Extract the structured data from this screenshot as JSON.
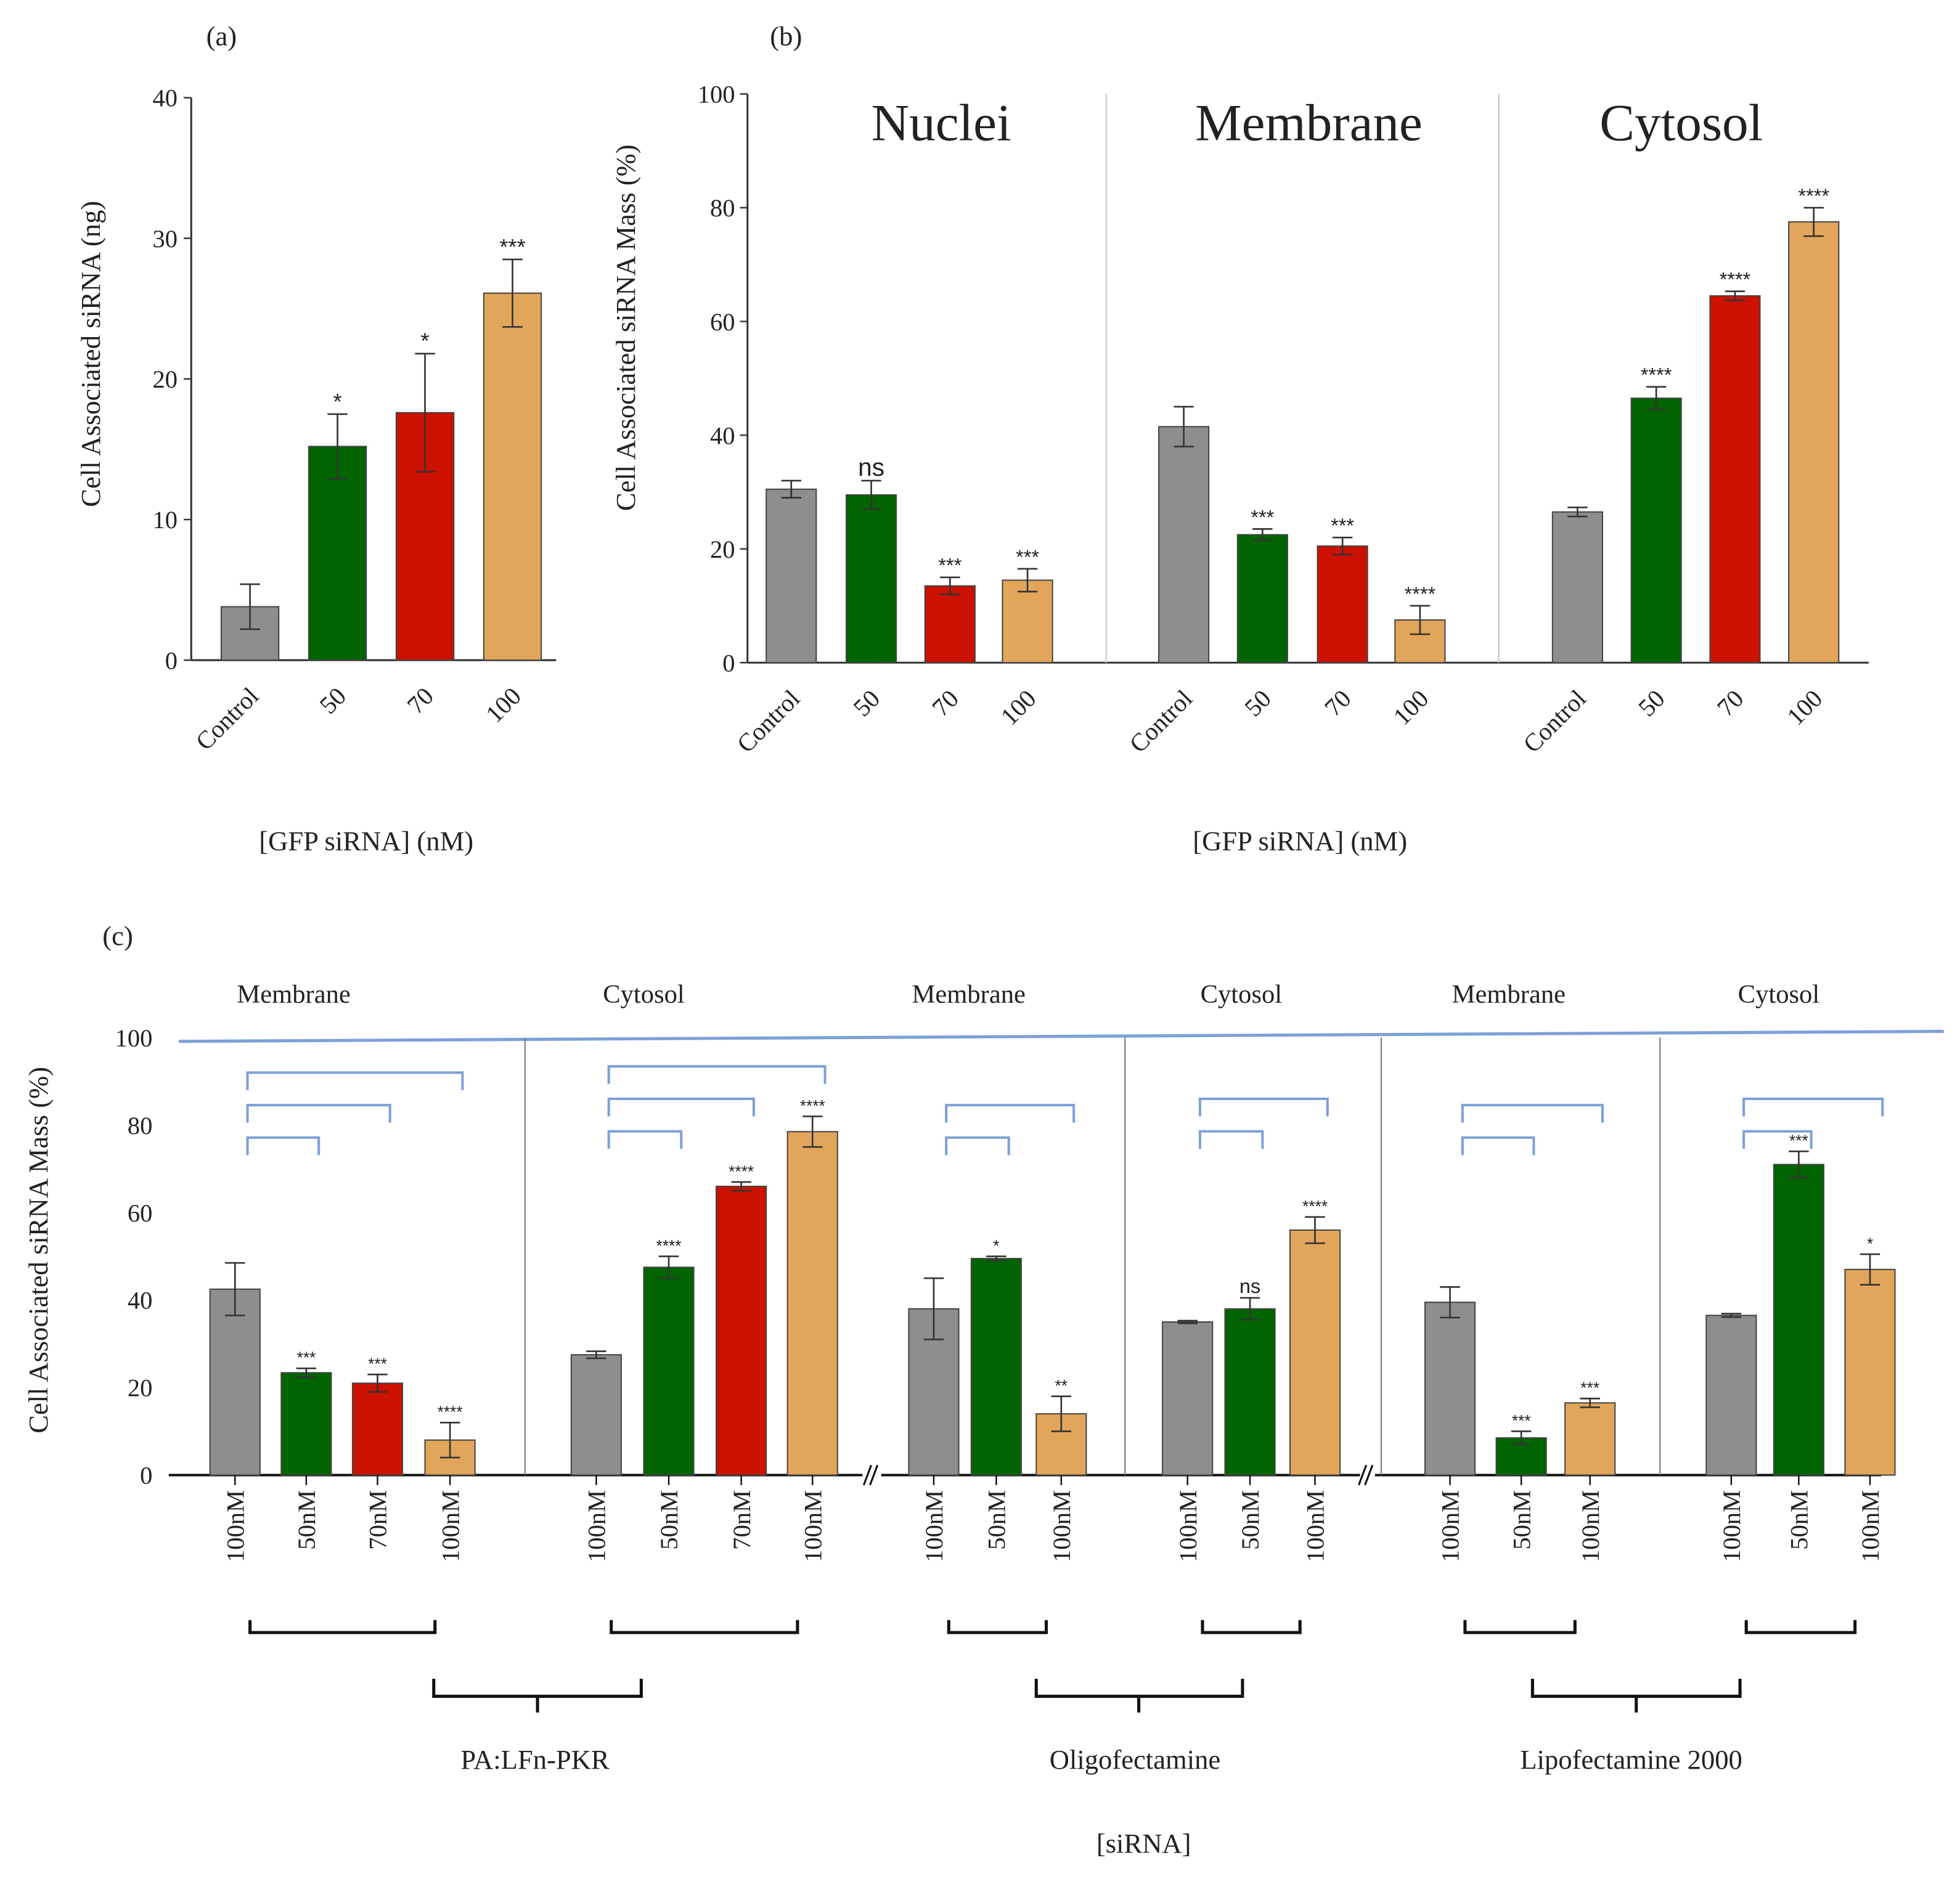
{
  "colors": {
    "control": "#8e8e8e",
    "50": "#006400",
    "70": "#cc1100",
    "100": "#e2a65a",
    "bracket": "#7da0d8"
  },
  "chart_data": [
    {
      "id": "a",
      "panel_label": "(a)",
      "type": "bar",
      "ylabel": "Cell Associated siRNA (ng)",
      "xlabel": "[GFP siRNA] (nM)",
      "ylim": [
        0,
        40
      ],
      "yticks": [
        0,
        10,
        20,
        30,
        40
      ],
      "categories": [
        "Control",
        "50",
        "70",
        "100"
      ],
      "values": [
        3.8,
        15.2,
        17.6,
        26.1
      ],
      "errors": [
        1.6,
        2.3,
        4.2,
        2.4
      ],
      "significance": [
        "",
        "*",
        "*",
        "***"
      ]
    },
    {
      "id": "b",
      "panel_label": "(b)",
      "type": "bar",
      "ylabel": "Cell Associated siRNA Mass (%)",
      "xlabel": "[GFP siRNA] (nM)",
      "ylim": [
        0,
        100
      ],
      "yticks": [
        0,
        20,
        40,
        60,
        80,
        100
      ],
      "groups": [
        {
          "title": "Nuclei",
          "categories": [
            "Control",
            "50",
            "70",
            "100"
          ],
          "values": [
            30.5,
            29.5,
            13.5,
            14.5
          ],
          "errors": [
            1.5,
            2.5,
            1.5,
            2
          ],
          "significance": [
            "",
            "ns",
            "***",
            "***"
          ]
        },
        {
          "title": "Membrane",
          "categories": [
            "Control",
            "50",
            "70",
            "100"
          ],
          "values": [
            41.5,
            22.5,
            20.5,
            7.5
          ],
          "errors": [
            3.5,
            1,
            1.5,
            2.5
          ],
          "significance": [
            "",
            "***",
            "***",
            "****"
          ]
        },
        {
          "title": "Cytosol",
          "categories": [
            "Control",
            "50",
            "70",
            "100"
          ],
          "values": [
            26.5,
            46.5,
            64.5,
            77.5
          ],
          "errors": [
            0.8,
            2,
            0.8,
            2.5
          ],
          "significance": [
            "",
            "****",
            "****",
            "****"
          ]
        }
      ]
    },
    {
      "id": "c",
      "panel_label": "(c)",
      "type": "bar",
      "ylabel": "Cell Associated siRNA Mass (%)",
      "xlabel": "[siRNA]",
      "ylim": [
        0,
        100
      ],
      "yticks": [
        0,
        20,
        40,
        60,
        80,
        100
      ],
      "reagents": [
        "PA:LFn-PKR",
        "Oligofectamine",
        "Lipofectamine 2000"
      ],
      "groups": [
        {
          "title": "Membrane",
          "reagent": 0,
          "categories": [
            "100nM",
            "50nM",
            "70nM",
            "100nM"
          ],
          "series": [
            "control",
            "50",
            "70",
            "100"
          ],
          "values": [
            42.5,
            23.4,
            21,
            8
          ],
          "errors": [
            6,
            1,
            2,
            4
          ],
          "significance": [
            "",
            "***",
            "***",
            "****"
          ]
        },
        {
          "title": "Cytosol",
          "reagent": 0,
          "categories": [
            "100nM",
            "50nM",
            "70nM",
            "100nM"
          ],
          "series": [
            "control",
            "50",
            "70",
            "100"
          ],
          "values": [
            27.5,
            47.5,
            66,
            78.5
          ],
          "errors": [
            0.8,
            2.5,
            1,
            3.5
          ],
          "significance": [
            "",
            "****",
            "****",
            "****"
          ]
        },
        {
          "title": "Membrane",
          "reagent": 1,
          "categories": [
            "100nM",
            "50nM",
            "100nM"
          ],
          "series": [
            "control",
            "50",
            "100"
          ],
          "values": [
            38,
            49.5,
            14
          ],
          "errors": [
            7,
            0.5,
            4
          ],
          "significance": [
            "",
            "*",
            "**"
          ]
        },
        {
          "title": "Cytosol",
          "reagent": 1,
          "categories": [
            "100nM",
            "50nM",
            "100nM"
          ],
          "series": [
            "control",
            "50",
            "100"
          ],
          "values": [
            35,
            38,
            56
          ],
          "errors": [
            0.3,
            2.5,
            3
          ],
          "significance": [
            "",
            "ns",
            "****"
          ]
        },
        {
          "title": "Membrane",
          "reagent": 2,
          "categories": [
            "100nM",
            "50nM",
            "100nM"
          ],
          "series": [
            "control",
            "50",
            "100"
          ],
          "values": [
            39.5,
            8.5,
            16.5
          ],
          "errors": [
            3.5,
            1.5,
            1
          ],
          "significance": [
            "",
            "***",
            "***"
          ]
        },
        {
          "title": "Cytosol",
          "reagent": 2,
          "categories": [
            "100nM",
            "50nM",
            "100nM"
          ],
          "series": [
            "control",
            "50",
            "100"
          ],
          "values": [
            36.5,
            71,
            47
          ],
          "errors": [
            0.4,
            3,
            3.5
          ],
          "significance": [
            "",
            "***",
            "*"
          ]
        }
      ]
    }
  ]
}
